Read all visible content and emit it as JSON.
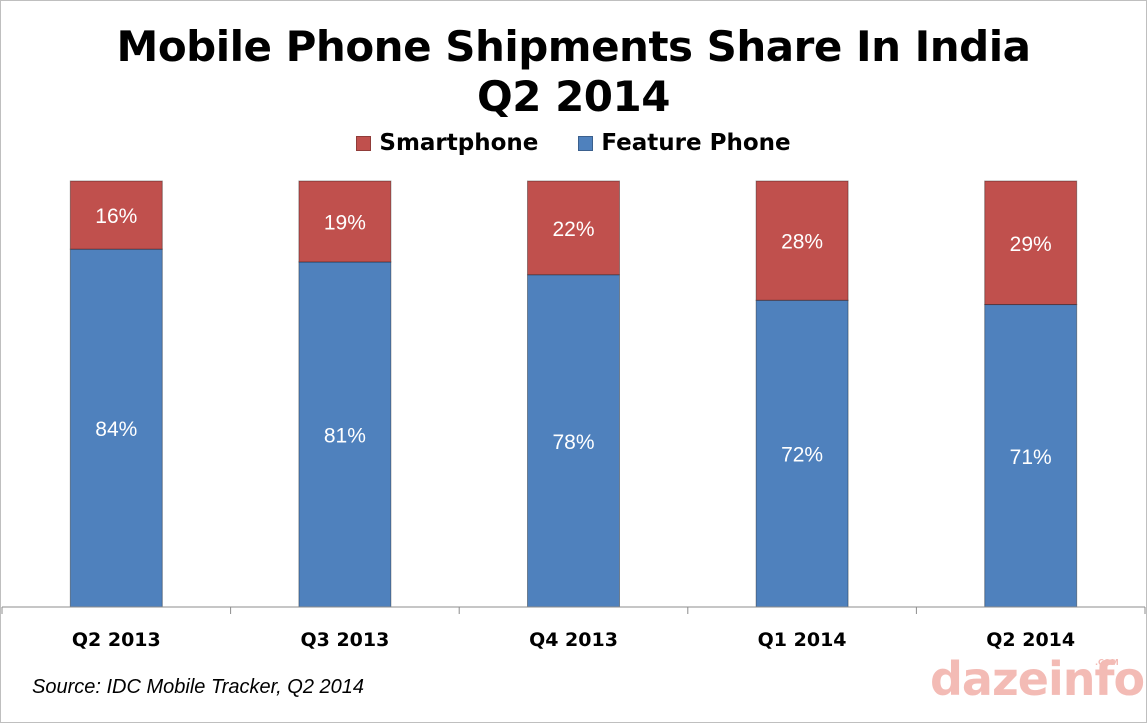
{
  "chart_data": {
    "type": "bar",
    "stacked": true,
    "title": "Mobile Phone Shipments Share In India",
    "subtitle": "Q2 2014",
    "categories": [
      "Q2 2013",
      "Q3 2013",
      "Q4 2013",
      "Q1 2014",
      "Q2 2014"
    ],
    "series": [
      {
        "name": "Feature Phone",
        "color": "#4f81bd",
        "values": [
          84,
          81,
          78,
          72,
          71
        ],
        "labels": [
          "84%",
          "81%",
          "78%",
          "72%",
          "71%"
        ]
      },
      {
        "name": "Smartphone",
        "color": "#c0504d",
        "values": [
          16,
          19,
          22,
          28,
          29
        ],
        "labels": [
          "16%",
          "19%",
          "22%",
          "28%",
          "29%"
        ]
      }
    ],
    "legend_order": [
      "Smartphone",
      "Feature Phone"
    ],
    "ylim": [
      0,
      100
    ],
    "legend": "top",
    "grid": false
  },
  "source": "Source: IDC Mobile Tracker, Q2 2014",
  "watermark": {
    "text": "dazeinfo",
    "suffix": ".com"
  }
}
